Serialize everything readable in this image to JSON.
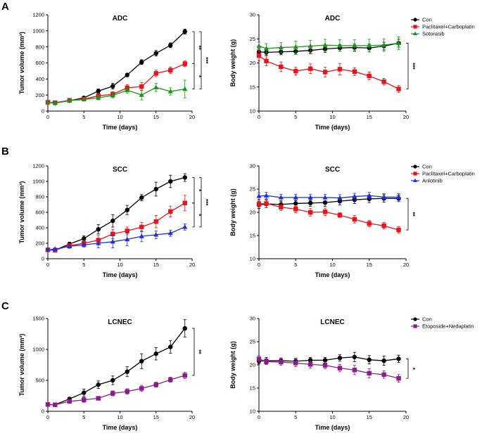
{
  "panel_labels": [
    "A",
    "B",
    "C"
  ],
  "colors": {
    "con": "#000000",
    "paclitaxel": "#e8141b",
    "sotorasib": "#199419",
    "anlotinib": "#1f2fd6",
    "etoposide": "#8a1c8c"
  },
  "chart_data": [
    {
      "type": "line",
      "panel": "A",
      "title": "ADC",
      "xlabel": "Time (days)",
      "ylabel": "Tumor volume (mm³)",
      "xlim": [
        0,
        20
      ],
      "ylim": [
        0,
        1200
      ],
      "xticks": [
        "0",
        "5",
        "10",
        "15",
        "20"
      ],
      "yticks": [
        "0",
        "200",
        "400",
        "600",
        "800",
        "1000",
        "1200"
      ],
      "x": [
        0,
        1,
        3,
        5,
        7,
        9,
        11,
        13,
        15,
        17,
        19
      ],
      "series": [
        {
          "name": "Con",
          "color": "#000000",
          "marker": "circle",
          "values": [
            110,
            100,
            130,
            165,
            250,
            310,
            450,
            610,
            720,
            820,
            990
          ],
          "err": [
            15,
            12,
            18,
            20,
            25,
            35,
            20,
            30,
            35,
            30,
            30
          ]
        },
        {
          "name": "Paclitaxel+Carboplatin",
          "color": "#e8141b",
          "marker": "square",
          "values": [
            110,
            105,
            135,
            150,
            190,
            210,
            290,
            305,
            470,
            510,
            590
          ],
          "err": [
            15,
            12,
            18,
            20,
            30,
            30,
            40,
            50,
            40,
            40,
            35
          ]
        },
        {
          "name": "Sotorasib",
          "color": "#199419",
          "marker": "triangle",
          "values": [
            110,
            100,
            130,
            145,
            165,
            195,
            260,
            200,
            295,
            245,
            275
          ],
          "err": [
            15,
            12,
            18,
            20,
            25,
            30,
            35,
            60,
            50,
            45,
            110
          ]
        }
      ],
      "significance": [
        {
          "label": "**",
          "from": 0,
          "to": 1
        },
        {
          "label": "*",
          "from": 1,
          "to": 2
        },
        {
          "label": "***",
          "from": 0,
          "to": 2
        }
      ]
    },
    {
      "type": "line",
      "panel": "A",
      "title": "ADC",
      "xlabel": "Time (days)",
      "ylabel": "Body weight (g)",
      "xlim": [
        0,
        20
      ],
      "ylim": [
        10,
        30
      ],
      "xticks": [
        "0",
        "5",
        "10",
        "15",
        "20"
      ],
      "yticks": [
        "10",
        "15",
        "20",
        "25",
        "30"
      ],
      "x": [
        0,
        1,
        3,
        5,
        7,
        9,
        11,
        13,
        15,
        17,
        19
      ],
      "legend": [
        "Con",
        "Paclitaxel+Carboplatin",
        "Sotorasib"
      ],
      "series": [
        {
          "name": "Con",
          "color": "#000000",
          "marker": "circle",
          "values": [
            22.3,
            22.2,
            22.3,
            22.4,
            22.6,
            22.9,
            23.1,
            23.2,
            23.1,
            23.5,
            24.1
          ],
          "err": [
            0.6,
            0.6,
            0.6,
            0.6,
            0.7,
            0.7,
            0.7,
            0.7,
            0.8,
            0.8,
            0.8
          ]
        },
        {
          "name": "Paclitaxel+Carboplatin",
          "color": "#e8141b",
          "marker": "square",
          "values": [
            21.5,
            20.4,
            19.2,
            18.3,
            18.8,
            18.1,
            18.7,
            18.2,
            17.3,
            16.1,
            14.6
          ],
          "err": [
            1.0,
            1.0,
            1.0,
            0.8,
            1.0,
            1.0,
            1.2,
            0.8,
            0.8,
            0.7,
            0.7
          ]
        },
        {
          "name": "Sotorasib",
          "color": "#199419",
          "marker": "triangle",
          "values": [
            23.5,
            23.0,
            23.2,
            23.3,
            23.5,
            23.7,
            23.6,
            23.6,
            23.6,
            23.7,
            24.1
          ],
          "err": [
            0.8,
            1.0,
            1.0,
            1.2,
            1.2,
            1.2,
            1.2,
            1.2,
            1.3,
            1.3,
            1.3
          ]
        }
      ],
      "significance": [
        {
          "label": "***",
          "from": 0,
          "to": 1
        }
      ]
    },
    {
      "type": "line",
      "panel": "B",
      "title": "SCC",
      "xlabel": "Time (days)",
      "ylabel": "Tumor volume (mm³)",
      "xlim": [
        0,
        20
      ],
      "ylim": [
        0,
        1200
      ],
      "xticks": [
        "0",
        "5",
        "10",
        "15",
        "20"
      ],
      "yticks": [
        "0",
        "200",
        "400",
        "600",
        "800",
        "1000",
        "1200"
      ],
      "x": [
        0,
        1,
        3,
        5,
        7,
        9,
        11,
        13,
        15,
        17,
        19
      ],
      "series": [
        {
          "name": "Con",
          "color": "#000000",
          "marker": "circle",
          "values": [
            115,
            110,
            190,
            260,
            380,
            490,
            630,
            790,
            900,
            1000,
            1050
          ],
          "err": [
            20,
            15,
            25,
            35,
            60,
            80,
            60,
            40,
            90,
            80,
            50
          ]
        },
        {
          "name": "Paclitaxel+Carboplatin",
          "color": "#e8141b",
          "marker": "square",
          "values": [
            115,
            110,
            170,
            200,
            240,
            320,
            360,
            410,
            480,
            610,
            720
          ],
          "err": [
            20,
            15,
            25,
            30,
            60,
            60,
            50,
            60,
            80,
            70,
            100
          ]
        },
        {
          "name": "Anlotinib",
          "color": "#1f2fd6",
          "marker": "triangle",
          "values": [
            115,
            125,
            160,
            180,
            200,
            220,
            250,
            290,
            310,
            330,
            410
          ],
          "err": [
            20,
            15,
            25,
            30,
            60,
            80,
            80,
            70,
            50,
            40,
            40
          ]
        }
      ],
      "significance": [
        {
          "label": "*",
          "from": 0,
          "to": 1
        },
        {
          "label": "*",
          "from": 1,
          "to": 2
        },
        {
          "label": "***",
          "from": 0,
          "to": 2
        }
      ]
    },
    {
      "type": "line",
      "panel": "B",
      "title": "SCC",
      "xlabel": "Time (days)",
      "ylabel": "Body weight (g)",
      "xlim": [
        0,
        20
      ],
      "ylim": [
        10,
        30
      ],
      "xticks": [
        "0",
        "5",
        "10",
        "15",
        "20"
      ],
      "yticks": [
        "10",
        "15",
        "20",
        "25",
        "30"
      ],
      "x": [
        0,
        1,
        3,
        5,
        7,
        9,
        11,
        13,
        15,
        17,
        19
      ],
      "legend": [
        "Con",
        "Paclitaxel+Carboplatin",
        "Anlotinib"
      ],
      "series": [
        {
          "name": "Con",
          "color": "#000000",
          "marker": "circle",
          "values": [
            21.6,
            21.8,
            21.7,
            21.9,
            22.0,
            22.1,
            22.4,
            22.7,
            22.9,
            23.0,
            23.0
          ],
          "err": [
            0.8,
            0.8,
            0.7,
            0.7,
            0.7,
            0.8,
            0.8,
            0.8,
            0.8,
            0.8,
            0.7
          ]
        },
        {
          "name": "Paclitaxel+Carboplatin",
          "color": "#e8141b",
          "marker": "square",
          "values": [
            21.8,
            21.9,
            21.1,
            20.7,
            20.0,
            20.1,
            19.4,
            18.5,
            17.6,
            17.1,
            16.2
          ],
          "err": [
            0.9,
            0.9,
            0.7,
            0.8,
            0.8,
            0.8,
            0.5,
            0.8,
            0.7,
            0.7,
            0.7
          ]
        },
        {
          "name": "Anlotinib",
          "color": "#1f2fd6",
          "marker": "triangle",
          "values": [
            23.5,
            23.6,
            23.2,
            23.2,
            23.2,
            23.2,
            23.1,
            23.4,
            23.6,
            23.3,
            23.3
          ],
          "err": [
            0.7,
            0.7,
            0.7,
            0.7,
            0.7,
            0.7,
            0.7,
            0.7,
            0.7,
            0.7,
            0.7
          ]
        }
      ],
      "significance": [
        {
          "label": "**",
          "from": 0,
          "to": 1
        }
      ]
    },
    {
      "type": "line",
      "panel": "C",
      "title": "LCNEC",
      "xlabel": "Time (days)",
      "ylabel": "Tumor volume (mm³)",
      "xlim": [
        0,
        20
      ],
      "ylim": [
        0,
        1500
      ],
      "xticks": [
        "0",
        "5",
        "10",
        "15",
        "20"
      ],
      "yticks": [
        "0",
        "500",
        "1000",
        "1500"
      ],
      "x": [
        0,
        1,
        3,
        5,
        7,
        9,
        11,
        13,
        15,
        17,
        19
      ],
      "series": [
        {
          "name": "Con",
          "color": "#000000",
          "marker": "circle",
          "values": [
            110,
            105,
            200,
            300,
            430,
            500,
            640,
            810,
            930,
            1040,
            1340
          ],
          "err": [
            15,
            15,
            25,
            60,
            60,
            70,
            80,
            120,
            100,
            100,
            140
          ]
        },
        {
          "name": "Etoposide+Nedaplatin",
          "color": "#8a1c8c",
          "marker": "square",
          "values": [
            110,
            105,
            160,
            185,
            210,
            290,
            320,
            370,
            430,
            510,
            580
          ],
          "err": [
            15,
            15,
            20,
            40,
            30,
            40,
            45,
            50,
            40,
            40,
            50
          ]
        }
      ],
      "significance": [
        {
          "label": "**",
          "from": 0,
          "to": 1
        }
      ]
    },
    {
      "type": "line",
      "panel": "C",
      "title": "LCNEC",
      "xlabel": "Time (days)",
      "ylabel": "Body weight (g)",
      "xlim": [
        0,
        20
      ],
      "ylim": [
        10,
        30
      ],
      "xticks": [
        "0",
        "5",
        "10",
        "15",
        "20"
      ],
      "yticks": [
        "10",
        "15",
        "20",
        "25",
        "30"
      ],
      "x": [
        0,
        1,
        3,
        5,
        7,
        9,
        11,
        13,
        15,
        17,
        19
      ],
      "legend": [
        "Con",
        "Etoposide+Nedaplatin"
      ],
      "series": [
        {
          "name": "Con",
          "color": "#000000",
          "marker": "circle",
          "values": [
            20.8,
            20.9,
            20.9,
            20.8,
            21.0,
            21.0,
            21.5,
            21.7,
            21.1,
            20.9,
            21.3
          ],
          "err": [
            0.6,
            0.7,
            0.6,
            0.6,
            0.6,
            0.6,
            0.7,
            1.0,
            0.9,
            1.0,
            0.8
          ]
        },
        {
          "name": "Etoposide+Nedaplatin",
          "color": "#8a1c8c",
          "marker": "square",
          "values": [
            21.3,
            20.7,
            20.6,
            20.4,
            20.1,
            19.9,
            19.3,
            18.9,
            18.2,
            17.9,
            17.1
          ],
          "err": [
            0.7,
            0.6,
            0.7,
            0.8,
            0.8,
            0.7,
            0.8,
            1.0,
            1.0,
            0.8,
            0.8
          ]
        }
      ],
      "significance": [
        {
          "label": "*",
          "from": 0,
          "to": 1
        }
      ]
    }
  ]
}
